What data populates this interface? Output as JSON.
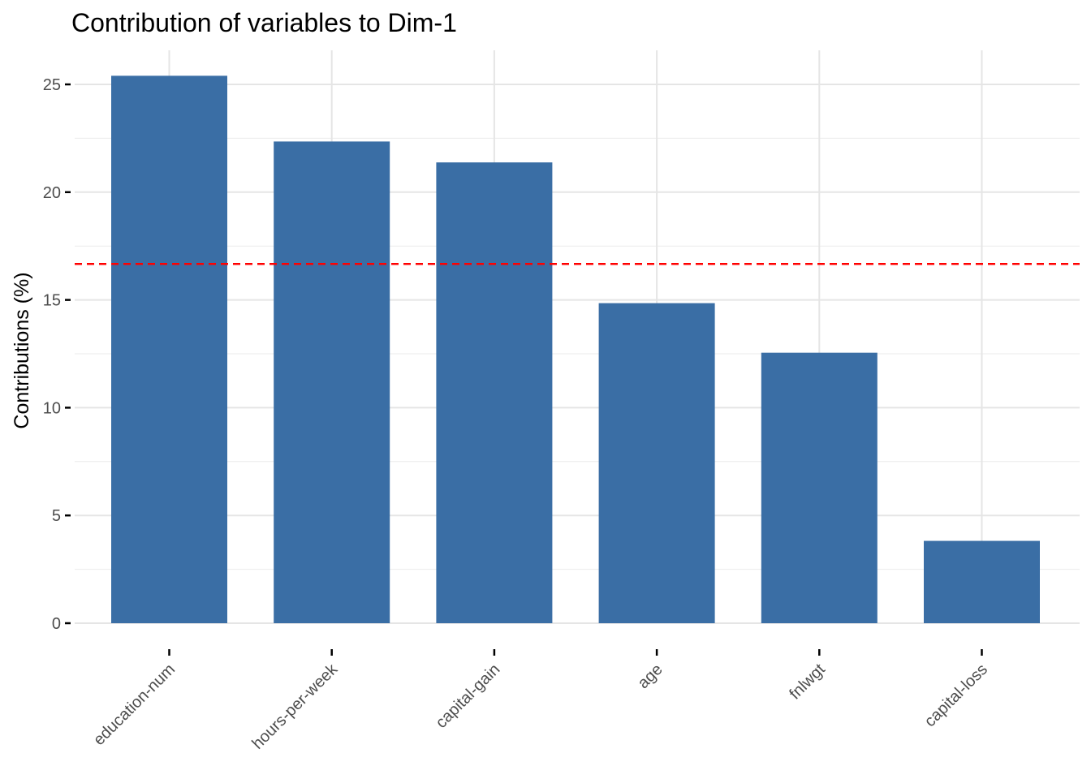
{
  "chart_data": {
    "type": "bar",
    "title": "Contribution of variables to Dim-1",
    "xlabel": "",
    "ylabel": "Contributions (%)",
    "categories": [
      "education-num",
      "hours-per-week",
      "capital-gain",
      "age",
      "fnlwgt",
      "capital-loss"
    ],
    "values": [
      25.4,
      22.35,
      21.38,
      14.85,
      12.55,
      3.82
    ],
    "ylim": [
      0,
      26.5
    ],
    "yticks": [
      0,
      5,
      10,
      15,
      20,
      25
    ],
    "reference_line": {
      "value": 16.67,
      "style": "dashed",
      "color": "#ff0000"
    },
    "bar_color": "#3a6ea5",
    "grid": true,
    "legend": "none"
  }
}
